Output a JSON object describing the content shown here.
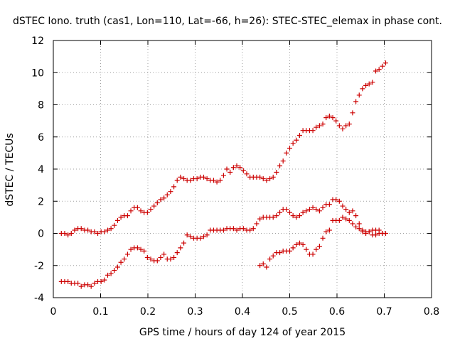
{
  "chart_data": {
    "type": "scatter",
    "title": "dSTEC Iono. truth (cas1, Lon=110, Lat=-66, h=26): STEC-STEC_elemax in phase cont.",
    "xlabel": "GPS time / hours of day 124 of year 2015",
    "ylabel": "dSTEC  / TECUs",
    "xlim": [
      0,
      0.8
    ],
    "ylim": [
      -4,
      12
    ],
    "xticks": [
      0,
      0.1,
      0.2,
      0.3,
      0.4,
      0.5,
      0.6,
      0.7,
      0.8
    ],
    "xtick_labels": [
      "0",
      "0.1",
      "0.2",
      "0.3",
      "0.4",
      "0.5",
      "0.6",
      "0.7",
      "0.8"
    ],
    "yticks": [
      -4,
      -2,
      0,
      2,
      4,
      6,
      8,
      10,
      12
    ],
    "ytick_labels": [
      "-4",
      "-2",
      "0",
      "2",
      "4",
      "6",
      "8",
      "10",
      "12"
    ],
    "grid": true,
    "marker": "plus",
    "color": "#cc0000",
    "series": [
      {
        "values": [
          [
            0.017,
            0.0
          ],
          [
            0.024,
            0.0
          ],
          [
            0.031,
            -0.1
          ],
          [
            0.038,
            0.0
          ],
          [
            0.045,
            0.2
          ],
          [
            0.052,
            0.3
          ],
          [
            0.059,
            0.3
          ],
          [
            0.066,
            0.2
          ],
          [
            0.073,
            0.2
          ],
          [
            0.08,
            0.1
          ],
          [
            0.087,
            0.1
          ],
          [
            0.094,
            0.0
          ],
          [
            0.101,
            0.1
          ],
          [
            0.108,
            0.1
          ],
          [
            0.115,
            0.2
          ],
          [
            0.122,
            0.3
          ],
          [
            0.129,
            0.5
          ],
          [
            0.136,
            0.8
          ],
          [
            0.143,
            1.0
          ],
          [
            0.15,
            1.1
          ],
          [
            0.157,
            1.1
          ],
          [
            0.164,
            1.4
          ],
          [
            0.171,
            1.6
          ],
          [
            0.178,
            1.6
          ],
          [
            0.185,
            1.4
          ],
          [
            0.192,
            1.3
          ],
          [
            0.199,
            1.3
          ],
          [
            0.206,
            1.5
          ],
          [
            0.213,
            1.7
          ],
          [
            0.22,
            1.9
          ],
          [
            0.227,
            2.1
          ],
          [
            0.234,
            2.2
          ],
          [
            0.241,
            2.4
          ],
          [
            0.248,
            2.6
          ],
          [
            0.255,
            2.9
          ],
          [
            0.262,
            3.3
          ],
          [
            0.269,
            3.5
          ],
          [
            0.276,
            3.4
          ],
          [
            0.283,
            3.3
          ],
          [
            0.29,
            3.3
          ],
          [
            0.297,
            3.4
          ],
          [
            0.304,
            3.4
          ],
          [
            0.311,
            3.5
          ],
          [
            0.318,
            3.5
          ],
          [
            0.325,
            3.4
          ],
          [
            0.332,
            3.3
          ],
          [
            0.339,
            3.3
          ],
          [
            0.346,
            3.2
          ],
          [
            0.353,
            3.3
          ],
          [
            0.36,
            3.6
          ],
          [
            0.367,
            4.0
          ],
          [
            0.374,
            3.8
          ],
          [
            0.381,
            4.1
          ],
          [
            0.388,
            4.2
          ],
          [
            0.395,
            4.1
          ],
          [
            0.402,
            3.9
          ],
          [
            0.409,
            3.7
          ],
          [
            0.416,
            3.5
          ],
          [
            0.423,
            3.5
          ],
          [
            0.43,
            3.5
          ],
          [
            0.437,
            3.5
          ],
          [
            0.444,
            3.4
          ],
          [
            0.451,
            3.3
          ],
          [
            0.458,
            3.4
          ],
          [
            0.465,
            3.5
          ],
          [
            0.472,
            3.8
          ],
          [
            0.479,
            4.2
          ],
          [
            0.486,
            4.5
          ],
          [
            0.493,
            5.0
          ],
          [
            0.5,
            5.3
          ],
          [
            0.507,
            5.6
          ],
          [
            0.514,
            5.8
          ],
          [
            0.521,
            6.1
          ],
          [
            0.528,
            6.4
          ],
          [
            0.535,
            6.4
          ],
          [
            0.542,
            6.4
          ],
          [
            0.549,
            6.4
          ],
          [
            0.556,
            6.6
          ],
          [
            0.563,
            6.7
          ],
          [
            0.57,
            6.8
          ],
          [
            0.577,
            7.2
          ],
          [
            0.584,
            7.3
          ],
          [
            0.591,
            7.2
          ],
          [
            0.598,
            7.0
          ],
          [
            0.605,
            6.7
          ],
          [
            0.612,
            6.5
          ],
          [
            0.619,
            6.7
          ],
          [
            0.626,
            6.8
          ],
          [
            0.633,
            7.5
          ],
          [
            0.64,
            8.2
          ],
          [
            0.647,
            8.6
          ],
          [
            0.654,
            9.0
          ],
          [
            0.661,
            9.2
          ],
          [
            0.668,
            9.3
          ],
          [
            0.675,
            9.4
          ],
          [
            0.682,
            10.1
          ],
          [
            0.689,
            10.2
          ],
          [
            0.696,
            10.4
          ],
          [
            0.703,
            10.6
          ]
        ]
      },
      {
        "values": [
          [
            0.017,
            -3.0
          ],
          [
            0.024,
            -3.0
          ],
          [
            0.031,
            -3.0
          ],
          [
            0.038,
            -3.1
          ],
          [
            0.045,
            -3.1
          ],
          [
            0.052,
            -3.1
          ],
          [
            0.059,
            -3.3
          ],
          [
            0.066,
            -3.2
          ],
          [
            0.073,
            -3.2
          ],
          [
            0.08,
            -3.3
          ],
          [
            0.087,
            -3.1
          ],
          [
            0.094,
            -3.0
          ],
          [
            0.101,
            -3.0
          ],
          [
            0.108,
            -2.9
          ],
          [
            0.115,
            -2.6
          ],
          [
            0.122,
            -2.5
          ],
          [
            0.129,
            -2.3
          ],
          [
            0.136,
            -2.1
          ],
          [
            0.143,
            -1.8
          ],
          [
            0.15,
            -1.6
          ],
          [
            0.157,
            -1.3
          ],
          [
            0.164,
            -1.0
          ],
          [
            0.171,
            -0.9
          ],
          [
            0.178,
            -0.9
          ],
          [
            0.185,
            -1.0
          ],
          [
            0.192,
            -1.1
          ],
          [
            0.199,
            -1.5
          ],
          [
            0.206,
            -1.6
          ],
          [
            0.213,
            -1.7
          ],
          [
            0.22,
            -1.7
          ],
          [
            0.227,
            -1.5
          ],
          [
            0.234,
            -1.3
          ],
          [
            0.241,
            -1.6
          ],
          [
            0.248,
            -1.6
          ],
          [
            0.255,
            -1.5
          ],
          [
            0.262,
            -1.2
          ],
          [
            0.269,
            -0.9
          ],
          [
            0.276,
            -0.6
          ],
          [
            0.283,
            -0.1
          ],
          [
            0.29,
            -0.2
          ],
          [
            0.297,
            -0.3
          ],
          [
            0.304,
            -0.3
          ],
          [
            0.311,
            -0.3
          ],
          [
            0.318,
            -0.2
          ],
          [
            0.325,
            -0.1
          ],
          [
            0.332,
            0.2
          ],
          [
            0.339,
            0.2
          ],
          [
            0.346,
            0.2
          ],
          [
            0.353,
            0.2
          ],
          [
            0.36,
            0.2
          ],
          [
            0.367,
            0.3
          ],
          [
            0.374,
            0.3
          ],
          [
            0.381,
            0.3
          ],
          [
            0.388,
            0.2
          ],
          [
            0.395,
            0.3
          ],
          [
            0.402,
            0.3
          ],
          [
            0.409,
            0.2
          ],
          [
            0.416,
            0.2
          ],
          [
            0.423,
            0.3
          ],
          [
            0.43,
            0.6
          ],
          [
            0.437,
            0.9
          ],
          [
            0.444,
            1.0
          ],
          [
            0.451,
            1.0
          ],
          [
            0.458,
            1.0
          ],
          [
            0.465,
            1.0
          ],
          [
            0.472,
            1.1
          ],
          [
            0.479,
            1.3
          ],
          [
            0.486,
            1.5
          ],
          [
            0.493,
            1.5
          ],
          [
            0.5,
            1.3
          ],
          [
            0.507,
            1.1
          ],
          [
            0.514,
            1.0
          ],
          [
            0.521,
            1.1
          ],
          [
            0.528,
            1.3
          ],
          [
            0.535,
            1.4
          ],
          [
            0.542,
            1.5
          ],
          [
            0.549,
            1.6
          ],
          [
            0.556,
            1.5
          ],
          [
            0.563,
            1.4
          ],
          [
            0.57,
            1.6
          ],
          [
            0.577,
            1.8
          ],
          [
            0.584,
            1.8
          ],
          [
            0.591,
            2.1
          ],
          [
            0.598,
            2.1
          ],
          [
            0.605,
            2.0
          ],
          [
            0.612,
            1.7
          ],
          [
            0.619,
            1.5
          ],
          [
            0.626,
            1.3
          ],
          [
            0.633,
            1.4
          ],
          [
            0.64,
            1.1
          ],
          [
            0.647,
            0.6
          ],
          [
            0.654,
            0.2
          ],
          [
            0.661,
            0.1
          ],
          [
            0.668,
            0.1
          ],
          [
            0.675,
            -0.1
          ],
          [
            0.682,
            -0.1
          ],
          [
            0.689,
            0.0
          ],
          [
            0.696,
            0.0
          ],
          [
            0.703,
            0.0
          ]
        ]
      },
      {
        "values": [
          [
            0.437,
            -2.0
          ],
          [
            0.444,
            -1.9
          ],
          [
            0.451,
            -2.1
          ],
          [
            0.458,
            -1.6
          ],
          [
            0.465,
            -1.4
          ],
          [
            0.472,
            -1.2
          ],
          [
            0.479,
            -1.2
          ],
          [
            0.486,
            -1.1
          ],
          [
            0.493,
            -1.1
          ],
          [
            0.5,
            -1.1
          ],
          [
            0.507,
            -0.9
          ],
          [
            0.514,
            -0.7
          ],
          [
            0.521,
            -0.6
          ],
          [
            0.528,
            -0.7
          ],
          [
            0.535,
            -1.0
          ],
          [
            0.542,
            -1.3
          ],
          [
            0.549,
            -1.3
          ],
          [
            0.556,
            -1.0
          ],
          [
            0.563,
            -0.8
          ],
          [
            0.57,
            -0.3
          ],
          [
            0.577,
            0.1
          ],
          [
            0.584,
            0.2
          ],
          [
            0.591,
            0.8
          ],
          [
            0.598,
            0.8
          ],
          [
            0.605,
            0.8
          ],
          [
            0.612,
            1.0
          ],
          [
            0.619,
            0.9
          ],
          [
            0.626,
            0.8
          ],
          [
            0.633,
            0.6
          ],
          [
            0.64,
            0.4
          ],
          [
            0.647,
            0.3
          ],
          [
            0.654,
            0.1
          ],
          [
            0.661,
            0.0
          ],
          [
            0.668,
            0.1
          ],
          [
            0.675,
            0.2
          ],
          [
            0.682,
            0.2
          ],
          [
            0.689,
            0.2
          ],
          [
            0.696,
            0.0
          ]
        ]
      }
    ]
  }
}
